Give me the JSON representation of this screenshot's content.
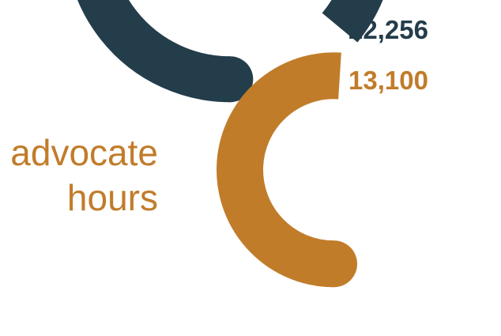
{
  "chart_data": {
    "type": "radial-bar",
    "title": "",
    "label_lines": [
      "advocate",
      "hours"
    ],
    "series": [
      {
        "value": 22256,
        "display": "22,256",
        "color": "#233d4b",
        "fraction": 0.86
      },
      {
        "value": 13100,
        "display": "13,100",
        "color": "#c17c2a",
        "fraction": 0.51
      }
    ],
    "label_color": "#c17c2a"
  }
}
